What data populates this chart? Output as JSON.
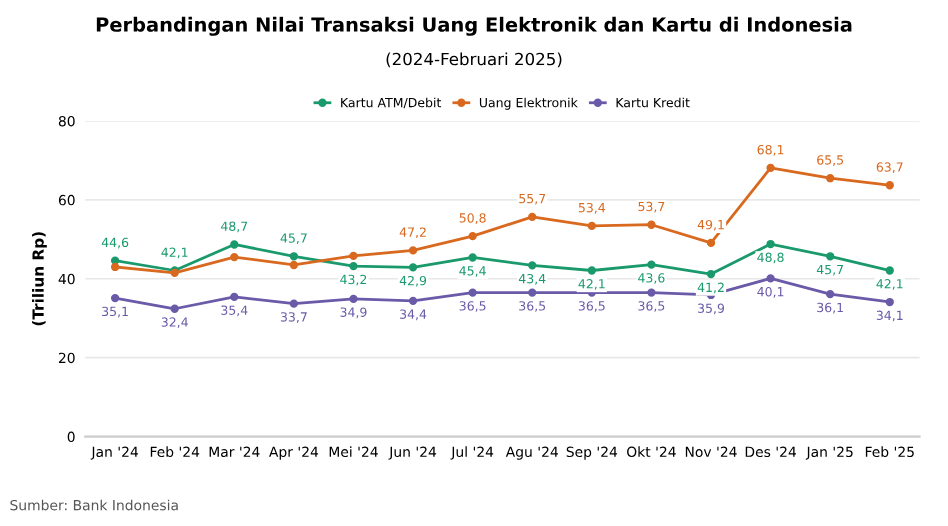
{
  "chart_data": {
    "type": "line",
    "title": "Perbandingan Nilai Transaksi Uang Elektronik dan Kartu di Indonesia",
    "subtitle": "(2024-Februari 2025)",
    "ylabel": "(Triliun Rp)",
    "categories": [
      "Jan '24",
      "Feb '24",
      "Mar '24",
      "Apr '24",
      "Mei '24",
      "Jun '24",
      "Jul '24",
      "Agu '24",
      "Sep '24",
      "Okt '24",
      "Nov '24",
      "Des '24",
      "Jan '25",
      "Feb '25"
    ],
    "series": [
      {
        "name": "Kartu ATM/Debit",
        "color": "#1a9a6c",
        "values": [
          44.6,
          42.1,
          48.7,
          45.7,
          43.2,
          42.9,
          45.4,
          43.4,
          42.1,
          43.6,
          41.2,
          48.8,
          45.7,
          42.1
        ],
        "value_labels": [
          "44,6",
          "42,1",
          "48,7",
          "45,7",
          "43,2",
          "42,9",
          "45,4",
          "43,4",
          "42,1",
          "43,6",
          "41,2",
          "48,8",
          "45,7",
          "42,1"
        ]
      },
      {
        "name": "Uang Elektronik",
        "color": "#d8691f",
        "values": [
          43.0,
          41.5,
          45.5,
          43.5,
          45.8,
          47.2,
          50.8,
          55.7,
          53.4,
          53.7,
          49.1,
          68.1,
          65.5,
          63.7
        ],
        "value_labels": [
          null,
          null,
          null,
          null,
          null,
          "47,2",
          "50,8",
          "55,7",
          "53,4",
          "53,7",
          "49,1",
          "68,1",
          "65,5",
          "63,7"
        ]
      },
      {
        "name": "Kartu Kredit",
        "color": "#6a5aa8",
        "values": [
          35.1,
          32.4,
          35.4,
          33.7,
          34.9,
          34.4,
          36.5,
          36.5,
          36.5,
          36.5,
          35.9,
          40.1,
          36.1,
          34.1
        ],
        "value_labels": [
          "35,1",
          "32,4",
          "35,4",
          "33,7",
          "34,9",
          "34,4",
          "36,5",
          "36,5",
          "36,5",
          "36,5",
          "35,9",
          "40,1",
          "36,1",
          "34,1"
        ]
      }
    ],
    "ylim": [
      0,
      80
    ],
    "yticks": [
      0,
      20,
      40,
      60,
      80
    ],
    "grid": "y",
    "legend": "top",
    "marker": "circle",
    "line_style": "solid",
    "annotations": [
      "Sumber: Bank Indonesia"
    ]
  }
}
